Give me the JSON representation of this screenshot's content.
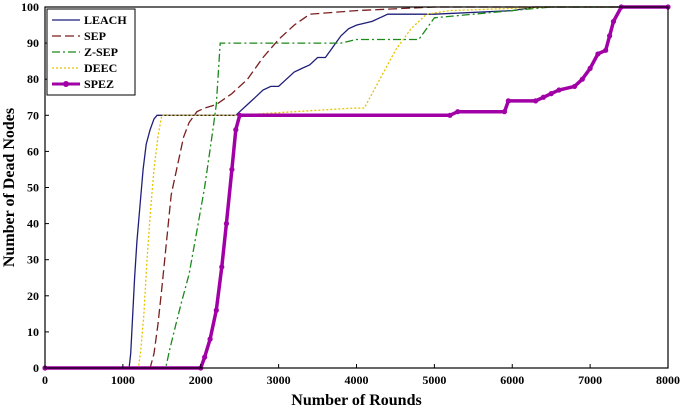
{
  "chart_data": {
    "type": "line",
    "xlabel": "Number of Rounds",
    "ylabel": "Number of Dead Nodes",
    "xlim": [
      0,
      8000
    ],
    "ylim": [
      0,
      100
    ],
    "xticks": [
      0,
      1000,
      2000,
      3000,
      4000,
      5000,
      6000,
      7000,
      8000
    ],
    "yticks": [
      0,
      10,
      20,
      30,
      40,
      50,
      60,
      70,
      80,
      90,
      100
    ],
    "grid": false,
    "legend_position": "top-left",
    "series": [
      {
        "name": "LEACH",
        "color": "#1f1f7a",
        "style": "solid",
        "points": [
          [
            0,
            0
          ],
          [
            1080,
            0
          ],
          [
            1100,
            4
          ],
          [
            1120,
            12
          ],
          [
            1150,
            25
          ],
          [
            1180,
            35
          ],
          [
            1220,
            45
          ],
          [
            1260,
            55
          ],
          [
            1300,
            62
          ],
          [
            1350,
            66
          ],
          [
            1400,
            69
          ],
          [
            1440,
            70
          ],
          [
            2450,
            70
          ],
          [
            2500,
            71
          ],
          [
            2600,
            73
          ],
          [
            2700,
            75
          ],
          [
            2800,
            77
          ],
          [
            2900,
            78
          ],
          [
            3000,
            78
          ],
          [
            3100,
            80
          ],
          [
            3200,
            82
          ],
          [
            3300,
            83
          ],
          [
            3400,
            84
          ],
          [
            3500,
            86
          ],
          [
            3600,
            86
          ],
          [
            3700,
            89
          ],
          [
            3800,
            92
          ],
          [
            3900,
            94
          ],
          [
            4000,
            95
          ],
          [
            4200,
            96
          ],
          [
            4400,
            98
          ],
          [
            5000,
            98
          ],
          [
            6000,
            99
          ],
          [
            6300,
            100
          ],
          [
            8000,
            100
          ]
        ]
      },
      {
        "name": "SEP",
        "color": "#7a1f1f",
        "style": "dashed",
        "points": [
          [
            0,
            0
          ],
          [
            1350,
            0
          ],
          [
            1400,
            4
          ],
          [
            1450,
            12
          ],
          [
            1500,
            22
          ],
          [
            1560,
            35
          ],
          [
            1620,
            48
          ],
          [
            1700,
            56
          ],
          [
            1780,
            64
          ],
          [
            1850,
            68
          ],
          [
            1950,
            71
          ],
          [
            2050,
            72
          ],
          [
            2200,
            73
          ],
          [
            2400,
            76
          ],
          [
            2600,
            80
          ],
          [
            2800,
            86
          ],
          [
            3000,
            91
          ],
          [
            3200,
            95
          ],
          [
            3400,
            98
          ],
          [
            4000,
            99
          ],
          [
            5000,
            100
          ],
          [
            8000,
            100
          ]
        ]
      },
      {
        "name": "Z-SEP",
        "color": "#1a8a1a",
        "style": "dashdot",
        "points": [
          [
            0,
            0
          ],
          [
            1550,
            0
          ],
          [
            1600,
            5
          ],
          [
            1680,
            12
          ],
          [
            1750,
            18
          ],
          [
            1850,
            26
          ],
          [
            1950,
            38
          ],
          [
            2050,
            50
          ],
          [
            2150,
            65
          ],
          [
            2200,
            73
          ],
          [
            2250,
            90
          ],
          [
            3000,
            90
          ],
          [
            3800,
            90
          ],
          [
            4000,
            91
          ],
          [
            4800,
            91
          ],
          [
            5000,
            97
          ],
          [
            5500,
            98
          ],
          [
            6000,
            99
          ],
          [
            6500,
            100
          ],
          [
            8000,
            100
          ]
        ]
      },
      {
        "name": "DEEC",
        "color": "#e6c200",
        "style": "dotted",
        "points": [
          [
            0,
            0
          ],
          [
            1200,
            0
          ],
          [
            1230,
            5
          ],
          [
            1270,
            15
          ],
          [
            1310,
            30
          ],
          [
            1360,
            45
          ],
          [
            1400,
            55
          ],
          [
            1450,
            64
          ],
          [
            1500,
            70
          ],
          [
            2450,
            70
          ],
          [
            3950,
            72
          ],
          [
            4100,
            72
          ],
          [
            4300,
            80
          ],
          [
            4500,
            88
          ],
          [
            4700,
            94
          ],
          [
            4900,
            98
          ],
          [
            5200,
            99
          ],
          [
            6500,
            100
          ],
          [
            8000,
            100
          ]
        ]
      },
      {
        "name": "SPEZ",
        "color": "#a100a6",
        "style": "solid-marker",
        "points": [
          [
            0,
            0
          ],
          [
            2000,
            0
          ],
          [
            2050,
            3
          ],
          [
            2120,
            8
          ],
          [
            2200,
            16
          ],
          [
            2270,
            28
          ],
          [
            2330,
            40
          ],
          [
            2400,
            55
          ],
          [
            2450,
            66
          ],
          [
            2500,
            70
          ],
          [
            5200,
            70
          ],
          [
            5300,
            71
          ],
          [
            5900,
            71
          ],
          [
            5950,
            74
          ],
          [
            6300,
            74
          ],
          [
            6400,
            75
          ],
          [
            6500,
            76
          ],
          [
            6600,
            77
          ],
          [
            6800,
            78
          ],
          [
            6900,
            80
          ],
          [
            7000,
            83
          ],
          [
            7100,
            87
          ],
          [
            7200,
            88
          ],
          [
            7250,
            92
          ],
          [
            7300,
            96
          ],
          [
            7400,
            100
          ],
          [
            8000,
            100
          ]
        ]
      }
    ]
  }
}
